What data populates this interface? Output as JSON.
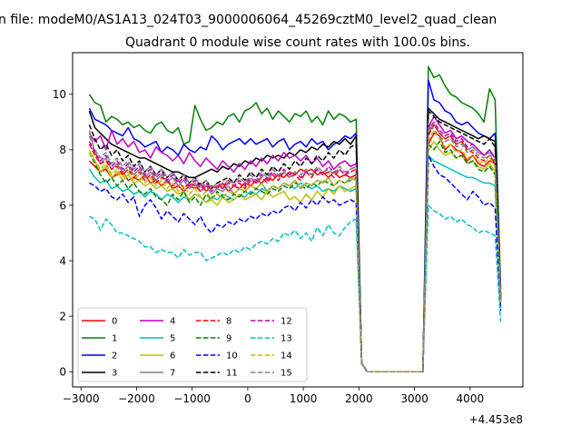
{
  "suptitle": "n file: modeM0/AS1A13_024T03_9000006064_45269cztM0_level2_quad_clean",
  "chart_data": {
    "type": "line",
    "title": "Quadrant 0 module wise count rates with 100.0s bins.",
    "xlabel": "",
    "ylabel": "",
    "x_offset_label": "+4.453e8",
    "xlim": [
      -3150,
      4950
    ],
    "ylim": [
      -0.55,
      11.5
    ],
    "xticks": [
      -3000,
      -2000,
      -1000,
      0,
      1000,
      2000,
      3000,
      4000
    ],
    "xtick_labels": [
      "−3000",
      "−2000",
      "−1000",
      "0",
      "1000",
      "2000",
      "3000",
      "4000"
    ],
    "yticks": [
      0,
      2,
      4,
      6,
      8,
      10
    ],
    "ytick_labels": [
      "0",
      "2",
      "4",
      "6",
      "8",
      "10"
    ],
    "grid": false,
    "legend_position": "lower-left",
    "legend_columns": 4,
    "x": [
      -2850,
      -2750,
      -2650,
      -2550,
      -2450,
      -2350,
      -2250,
      -2150,
      -2050,
      -1950,
      -1850,
      -1750,
      -1650,
      -1550,
      -1450,
      -1350,
      -1250,
      -1150,
      -1050,
      -950,
      -850,
      -750,
      -650,
      -550,
      -450,
      -350,
      -250,
      -150,
      -50,
      50,
      150,
      250,
      350,
      450,
      550,
      650,
      750,
      850,
      950,
      1050,
      1150,
      1250,
      1350,
      1450,
      1550,
      1650,
      1750,
      1850,
      1950,
      2050,
      2150,
      3150,
      3250,
      3350,
      3450,
      3550,
      3650,
      3750,
      3850,
      3950,
      4050,
      4150,
      4250,
      4350,
      4450,
      4550
    ],
    "series": [
      {
        "name": "0",
        "color": "#ff0000",
        "dash": "solid",
        "values": [
          7.6,
          7.4,
          7.2,
          7.3,
          7.0,
          7.1,
          7.2,
          6.9,
          7.0,
          6.9,
          7.1,
          6.8,
          6.9,
          6.7,
          6.9,
          6.6,
          6.7,
          6.5,
          6.7,
          6.6,
          6.8,
          6.5,
          6.7,
          6.6,
          6.8,
          6.5,
          6.7,
          6.6,
          6.8,
          6.7,
          6.9,
          6.8,
          7.0,
          6.9,
          7.1,
          7.0,
          7.2,
          7.1,
          7.3,
          7.2,
          7.3,
          7.1,
          7.2,
          7.0,
          7.2,
          7.0,
          7.1,
          7.0,
          7.1,
          0.3,
          0.0,
          0.0,
          8.2,
          8.6,
          8.5,
          8.0,
          8.2,
          8.0,
          7.9,
          7.6,
          7.8,
          7.5,
          7.4,
          7.6,
          7.5,
          2.7
        ]
      },
      {
        "name": "1",
        "color": "#008000",
        "dash": "solid",
        "values": [
          10.0,
          9.7,
          9.6,
          9.0,
          9.2,
          9.1,
          8.9,
          9.0,
          8.8,
          8.9,
          8.7,
          8.6,
          8.9,
          9.0,
          8.7,
          8.6,
          8.8,
          8.2,
          8.3,
          9.6,
          9.1,
          8.7,
          8.8,
          9.0,
          8.9,
          9.2,
          9.3,
          9.0,
          9.4,
          9.5,
          9.7,
          9.3,
          9.5,
          9.1,
          9.4,
          9.2,
          9.0,
          9.3,
          9.2,
          9.4,
          9.0,
          9.2,
          8.9,
          9.4,
          9.1,
          9.3,
          9.2,
          9.0,
          9.1,
          0.3,
          0.0,
          0.0,
          11.0,
          10.6,
          10.7,
          10.3,
          10.0,
          9.9,
          9.7,
          9.6,
          9.5,
          9.3,
          9.0,
          10.2,
          9.8,
          3.0
        ]
      },
      {
        "name": "2",
        "color": "#0000ff",
        "dash": "solid",
        "values": [
          9.5,
          9.1,
          9.0,
          8.9,
          8.7,
          8.6,
          8.5,
          8.8,
          8.4,
          8.3,
          8.1,
          8.2,
          8.3,
          7.9,
          8.1,
          8.0,
          7.8,
          8.2,
          8.0,
          7.9,
          8.1,
          8.0,
          8.5,
          8.3,
          8.0,
          8.2,
          8.3,
          8.4,
          8.2,
          8.4,
          8.2,
          8.3,
          8.4,
          8.1,
          8.3,
          8.4,
          8.0,
          8.2,
          8.3,
          8.1,
          8.4,
          8.2,
          8.3,
          8.0,
          8.2,
          8.3,
          8.5,
          8.4,
          8.6,
          0.3,
          0.0,
          0.0,
          10.5,
          9.8,
          9.7,
          9.4,
          9.3,
          9.0,
          8.9,
          9.0,
          8.8,
          8.6,
          8.5,
          8.4,
          8.6,
          2.8
        ]
      },
      {
        "name": "3",
        "color": "#000000",
        "dash": "solid",
        "values": [
          9.4,
          8.8,
          8.6,
          8.4,
          8.2,
          8.1,
          8.0,
          7.9,
          7.8,
          7.7,
          7.7,
          7.6,
          7.5,
          7.4,
          7.3,
          7.2,
          7.2,
          7.1,
          7.0,
          7.0,
          7.1,
          7.2,
          7.3,
          7.2,
          7.4,
          7.3,
          7.5,
          7.4,
          7.6,
          7.5,
          7.7,
          7.6,
          7.8,
          7.7,
          7.8,
          7.7,
          7.9,
          7.8,
          8.0,
          7.9,
          8.1,
          8.0,
          8.2,
          8.1,
          8.3,
          8.2,
          8.4,
          8.2,
          8.5,
          0.3,
          0.0,
          0.0,
          9.5,
          9.3,
          9.1,
          9.0,
          8.9,
          8.8,
          8.7,
          8.6,
          8.5,
          8.4,
          8.5,
          8.4,
          8.3,
          2.6
        ]
      },
      {
        "name": "4",
        "color": "#bf00bf",
        "dash": "solid",
        "values": [
          8.6,
          8.3,
          8.5,
          8.0,
          8.7,
          8.2,
          8.4,
          8.1,
          8.3,
          7.9,
          8.0,
          7.7,
          8.1,
          7.9,
          7.8,
          7.6,
          7.8,
          7.5,
          7.9,
          7.6,
          7.4,
          7.7,
          7.5,
          7.3,
          7.6,
          7.4,
          7.2,
          7.5,
          7.3,
          7.6,
          7.4,
          7.7,
          7.5,
          7.8,
          7.6,
          7.9,
          7.7,
          7.8,
          7.6,
          7.8,
          7.5,
          7.7,
          7.4,
          7.6,
          7.3,
          7.5,
          7.6,
          7.4,
          7.5,
          0.3,
          0.0,
          0.0,
          8.8,
          9.2,
          8.9,
          8.6,
          8.7,
          8.4,
          8.5,
          8.3,
          8.2,
          8.0,
          7.8,
          8.0,
          7.7,
          2.5
        ]
      },
      {
        "name": "5",
        "color": "#00bfbf",
        "dash": "solid",
        "values": [
          7.3,
          7.0,
          6.8,
          6.9,
          6.6,
          6.7,
          6.5,
          6.6,
          6.4,
          6.5,
          6.3,
          6.5,
          6.4,
          6.2,
          6.4,
          6.3,
          6.1,
          6.3,
          6.2,
          6.4,
          6.3,
          6.1,
          6.3,
          6.2,
          6.4,
          6.3,
          6.2,
          6.4,
          6.3,
          6.5,
          6.4,
          6.6,
          6.5,
          6.7,
          6.6,
          6.8,
          6.7,
          6.6,
          6.8,
          6.7,
          6.6,
          6.7,
          6.5,
          6.6,
          6.5,
          6.7,
          6.6,
          6.5,
          6.6,
          0.3,
          0.0,
          0.0,
          7.8,
          7.6,
          7.5,
          7.4,
          7.3,
          7.2,
          7.1,
          7.0,
          7.0,
          6.9,
          6.8,
          6.8,
          6.7,
          2.3
        ]
      },
      {
        "name": "6",
        "color": "#bfbf00",
        "dash": "solid",
        "values": [
          8.0,
          7.6,
          7.2,
          7.4,
          7.0,
          7.2,
          6.9,
          7.1,
          6.8,
          6.9,
          6.7,
          6.8,
          6.6,
          6.7,
          6.5,
          6.6,
          6.4,
          6.5,
          6.2,
          6.4,
          6.3,
          6.1,
          6.2,
          6.0,
          6.3,
          6.1,
          6.2,
          6.4,
          6.2,
          6.3,
          6.4,
          6.2,
          6.5,
          6.3,
          6.4,
          6.5,
          6.2,
          6.3,
          6.1,
          6.4,
          6.2,
          6.5,
          6.3,
          6.6,
          6.4,
          6.7,
          6.5,
          6.6,
          6.7,
          0.3,
          0.0,
          0.0,
          8.0,
          8.3,
          8.0,
          7.8,
          7.9,
          7.7,
          7.8,
          7.5,
          7.6,
          7.4,
          7.3,
          7.5,
          7.2,
          2.4
        ]
      },
      {
        "name": "7",
        "color": "#808080",
        "dash": "solid",
        "values": [
          8.7,
          7.9,
          7.5,
          7.7,
          7.3,
          7.5,
          7.2,
          7.4,
          7.1,
          7.3,
          7.0,
          7.2,
          6.9,
          7.1,
          6.8,
          7.0,
          6.7,
          6.9,
          6.6,
          6.8,
          6.5,
          6.7,
          6.4,
          6.6,
          6.5,
          6.7,
          6.4,
          6.6,
          6.5,
          6.7,
          6.6,
          6.8,
          6.5,
          6.7,
          6.6,
          6.8,
          6.7,
          6.9,
          6.6,
          6.8,
          6.7,
          6.9,
          6.8,
          7.0,
          6.7,
          6.9,
          6.8,
          7.0,
          6.9,
          0.3,
          0.0,
          0.0,
          8.6,
          8.9,
          8.6,
          8.4,
          8.5,
          8.2,
          8.3,
          8.0,
          8.1,
          7.9,
          7.8,
          7.9,
          7.7,
          2.6
        ]
      },
      {
        "name": "8",
        "color": "#ff0000",
        "dash": "dashed",
        "values": [
          8.2,
          7.8,
          7.5,
          7.6,
          7.3,
          7.4,
          7.1,
          7.3,
          7.0,
          7.2,
          6.9,
          7.1,
          6.8,
          7.0,
          6.9,
          6.7,
          6.9,
          6.6,
          6.8,
          6.7,
          6.5,
          6.7,
          6.6,
          6.8,
          6.6,
          6.9,
          6.7,
          6.8,
          6.6,
          6.9,
          6.8,
          7.0,
          6.8,
          7.1,
          6.9,
          7.2,
          7.0,
          7.1,
          6.9,
          7.2,
          7.0,
          7.3,
          7.1,
          7.2,
          7.0,
          7.3,
          7.1,
          7.2,
          7.3,
          0.3,
          0.0,
          0.0,
          8.5,
          8.9,
          8.6,
          8.4,
          8.5,
          8.2,
          8.3,
          8.0,
          7.9,
          7.7,
          7.6,
          7.8,
          7.5,
          2.7
        ]
      },
      {
        "name": "9",
        "color": "#008000",
        "dash": "dashed",
        "values": [
          7.9,
          7.5,
          7.1,
          6.8,
          7.0,
          6.7,
          6.9,
          6.6,
          6.8,
          6.5,
          6.4,
          6.6,
          6.3,
          6.2,
          6.0,
          6.4,
          6.2,
          6.5,
          6.1,
          6.3,
          6.0,
          6.4,
          6.2,
          6.5,
          6.3,
          6.2,
          6.4,
          6.3,
          6.5,
          6.4,
          6.6,
          6.5,
          6.4,
          6.6,
          6.5,
          6.7,
          6.6,
          6.8,
          6.7,
          6.6,
          6.8,
          6.7,
          6.9,
          6.8,
          6.7,
          6.9,
          6.8,
          6.9,
          7.0,
          0.3,
          0.0,
          0.0,
          8.2,
          8.0,
          8.3,
          7.9,
          8.0,
          7.7,
          7.8,
          7.5,
          7.6,
          7.3,
          7.2,
          7.4,
          7.1,
          2.5
        ]
      },
      {
        "name": "10",
        "color": "#0000ff",
        "dash": "dashed",
        "values": [
          6.8,
          6.7,
          6.5,
          6.6,
          6.3,
          6.2,
          6.4,
          6.1,
          6.3,
          5.6,
          6.0,
          6.2,
          5.9,
          5.5,
          5.8,
          5.6,
          5.4,
          5.7,
          5.5,
          5.3,
          5.6,
          5.2,
          5.0,
          5.3,
          5.2,
          5.4,
          5.3,
          5.5,
          5.4,
          5.6,
          5.5,
          5.7,
          5.6,
          5.8,
          5.7,
          5.9,
          6.0,
          5.8,
          6.1,
          5.9,
          6.2,
          6.0,
          6.3,
          6.1,
          6.2,
          6.0,
          6.1,
          6.2,
          6.1,
          0.3,
          0.0,
          0.0,
          7.8,
          7.4,
          7.1,
          7.0,
          6.8,
          6.6,
          6.4,
          6.2,
          6.5,
          6.3,
          6.0,
          6.1,
          5.9,
          2.2
        ]
      },
      {
        "name": "11",
        "color": "#000000",
        "dash": "dashed",
        "values": [
          8.9,
          8.4,
          8.0,
          8.2,
          7.8,
          8.0,
          7.6,
          7.8,
          7.4,
          7.6,
          7.2,
          7.4,
          7.1,
          7.3,
          7.0,
          7.2,
          6.9,
          7.1,
          6.8,
          7.0,
          6.7,
          6.9,
          6.6,
          6.8,
          6.9,
          7.0,
          6.8,
          7.1,
          6.9,
          7.2,
          7.0,
          7.3,
          7.1,
          7.4,
          7.2,
          7.5,
          7.3,
          7.6,
          7.4,
          7.7,
          7.5,
          7.8,
          7.6,
          7.9,
          7.7,
          8.0,
          7.8,
          8.1,
          8.2,
          0.3,
          0.0,
          0.0,
          9.4,
          9.2,
          9.0,
          8.9,
          8.8,
          8.7,
          8.6,
          8.5,
          8.4,
          8.3,
          8.2,
          8.4,
          8.1,
          2.7
        ]
      },
      {
        "name": "12",
        "color": "#bf00bf",
        "dash": "dashed",
        "values": [
          8.3,
          7.9,
          7.6,
          7.8,
          7.4,
          7.6,
          7.3,
          7.5,
          7.2,
          7.4,
          7.1,
          7.3,
          7.0,
          7.2,
          6.9,
          7.1,
          6.8,
          7.0,
          6.7,
          6.9,
          6.6,
          6.8,
          6.5,
          6.7,
          6.6,
          6.8,
          6.7,
          6.9,
          6.7,
          7.0,
          6.8,
          7.1,
          6.9,
          7.2,
          7.0,
          7.3,
          7.1,
          7.2,
          7.0,
          7.2,
          7.1,
          7.3,
          7.1,
          7.4,
          7.2,
          7.3,
          7.1,
          7.3,
          7.4,
          0.3,
          0.0,
          0.0,
          8.7,
          9.0,
          8.7,
          8.5,
          8.6,
          8.3,
          8.4,
          8.1,
          8.2,
          8.0,
          7.8,
          8.0,
          7.7,
          2.6
        ]
      },
      {
        "name": "13",
        "color": "#00bfbf",
        "dash": "dashed",
        "values": [
          5.6,
          5.5,
          5.1,
          5.5,
          5.3,
          5.0,
          5.0,
          4.9,
          4.8,
          4.7,
          4.5,
          4.5,
          4.3,
          4.4,
          4.3,
          4.3,
          4.1,
          4.4,
          4.2,
          4.3,
          4.3,
          4.0,
          4.1,
          4.2,
          4.3,
          4.2,
          4.4,
          4.3,
          4.5,
          4.4,
          4.6,
          4.7,
          4.6,
          4.8,
          4.7,
          5.0,
          4.9,
          5.1,
          4.8,
          5.0,
          4.7,
          5.2,
          4.9,
          5.3,
          5.0,
          4.9,
          5.2,
          5.4,
          5.5,
          0.3,
          0.0,
          0.0,
          6.0,
          5.8,
          5.7,
          5.5,
          5.6,
          5.4,
          5.5,
          5.3,
          5.2,
          5.0,
          5.1,
          5.0,
          4.9,
          1.8
        ]
      },
      {
        "name": "14",
        "color": "#bfbf00",
        "dash": "dashed",
        "values": [
          7.9,
          7.6,
          7.3,
          7.5,
          7.1,
          7.3,
          7.0,
          7.2,
          6.9,
          7.1,
          6.8,
          7.0,
          6.7,
          6.9,
          6.6,
          6.8,
          6.5,
          6.7,
          6.4,
          6.6,
          6.3,
          6.5,
          6.2,
          6.4,
          6.3,
          6.5,
          6.4,
          6.6,
          6.5,
          6.7,
          6.6,
          6.8,
          6.5,
          6.7,
          6.6,
          6.8,
          6.7,
          6.9,
          6.6,
          6.8,
          6.7,
          6.9,
          6.8,
          7.0,
          6.7,
          6.9,
          6.8,
          6.9,
          7.0,
          0.3,
          0.0,
          0.0,
          8.3,
          8.7,
          8.4,
          8.1,
          8.2,
          7.9,
          8.0,
          7.7,
          7.8,
          7.6,
          7.5,
          7.7,
          7.4,
          2.5
        ]
      },
      {
        "name": "15",
        "color": "#808080",
        "dash": "dashed",
        "values": [
          8.5,
          8.0,
          7.7,
          7.9,
          7.5,
          7.7,
          7.4,
          7.6,
          7.3,
          7.5,
          7.2,
          7.4,
          7.1,
          7.3,
          7.0,
          7.2,
          6.9,
          7.1,
          6.8,
          7.0,
          6.7,
          6.9,
          6.6,
          6.8,
          6.7,
          6.9,
          6.8,
          7.0,
          6.8,
          7.1,
          6.9,
          7.2,
          7.0,
          7.3,
          7.1,
          7.2,
          7.0,
          7.2,
          7.1,
          7.3,
          7.1,
          7.4,
          7.2,
          7.3,
          7.1,
          7.4,
          7.2,
          7.3,
          7.4,
          0.3,
          0.0,
          0.0,
          9.0,
          8.7,
          8.5,
          8.3,
          8.4,
          8.1,
          8.2,
          7.9,
          8.0,
          7.8,
          7.7,
          7.8,
          7.6,
          2.6
        ]
      }
    ]
  }
}
